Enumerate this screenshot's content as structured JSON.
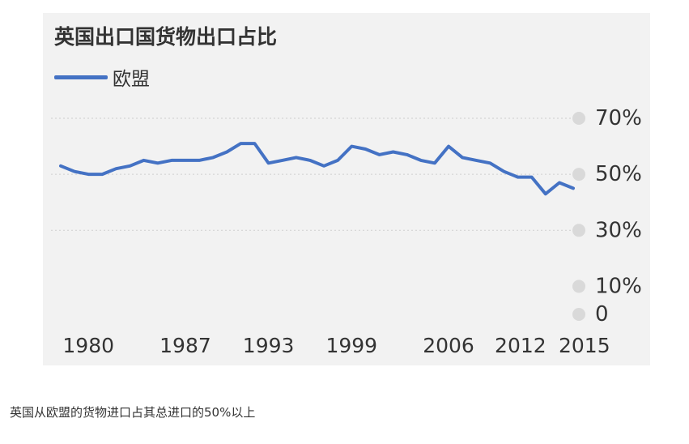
{
  "chart_data": {
    "type": "line",
    "title": "英国出口国货物出口占比",
    "series": [
      {
        "name": "欧盟",
        "color": "#4472c4",
        "points": [
          [
            1978,
            53
          ],
          [
            1979,
            51
          ],
          [
            1980,
            50
          ],
          [
            1981,
            50
          ],
          [
            1982,
            52
          ],
          [
            1983,
            53
          ],
          [
            1984,
            55
          ],
          [
            1985,
            54
          ],
          [
            1986,
            55
          ],
          [
            1987,
            55
          ],
          [
            1988,
            55
          ],
          [
            1989,
            56
          ],
          [
            1990,
            58
          ],
          [
            1991,
            61
          ],
          [
            1992,
            61
          ],
          [
            1993,
            54
          ],
          [
            1994,
            55
          ],
          [
            1995,
            56
          ],
          [
            1996,
            55
          ],
          [
            1997,
            53
          ],
          [
            1998,
            55
          ],
          [
            1999,
            60
          ],
          [
            2000,
            59
          ],
          [
            2001,
            57
          ],
          [
            2002,
            58
          ],
          [
            2003,
            57
          ],
          [
            2004,
            55
          ],
          [
            2005,
            54
          ],
          [
            2006,
            60
          ],
          [
            2007,
            56
          ],
          [
            2008,
            55
          ],
          [
            2009,
            54
          ],
          [
            2010,
            51
          ],
          [
            2011,
            49
          ],
          [
            2012,
            49
          ],
          [
            2013,
            43
          ],
          [
            2014,
            47
          ],
          [
            2015,
            45
          ]
        ]
      }
    ],
    "x_ticks": [
      "1980",
      "1987",
      "1993",
      "1999",
      "2006",
      "2012",
      "2015"
    ],
    "x_tick_values": [
      1980,
      1987,
      1993,
      1999,
      2006,
      2012,
      2015
    ],
    "y_ticks": [
      "70%",
      "50%",
      "30%",
      "10%",
      "0"
    ],
    "y_tick_values": [
      70,
      50,
      30,
      10,
      0
    ],
    "ylim": [
      0,
      70
    ],
    "xlim": [
      1978,
      2015
    ],
    "grid": true,
    "y_axis_side": "right",
    "legend_position": "top-left"
  },
  "caption": "英国从欧盟的货物进口占其总进口的50%以上",
  "colors": {
    "panel_background": "#f2f2f2",
    "gridline": "#cfcfcf",
    "tick_marker": "#d9d9d9",
    "text": "#333333"
  }
}
